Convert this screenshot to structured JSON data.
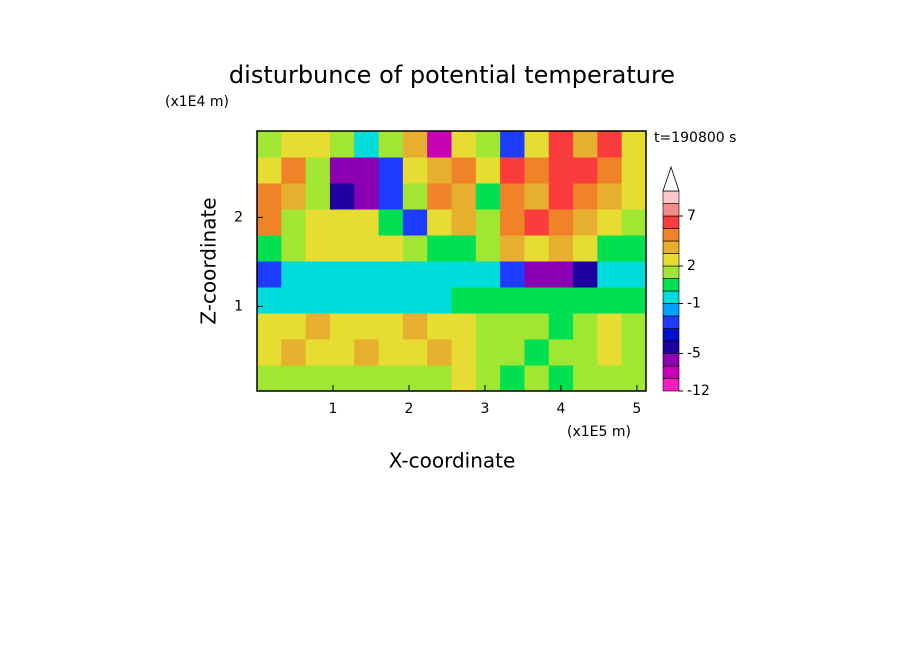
{
  "chart_data": {
    "type": "contour",
    "title": "disturbunce of potential temperature",
    "x_label": "X-coordinate",
    "y_label": "Z-coordinate",
    "x_unit": "(x1E5 m)",
    "y_unit": "(x1E4 m)",
    "annotation": "t=190800 s",
    "xlim": [
      0,
      5.12
    ],
    "ylim": [
      0.05,
      2.97
    ],
    "xticks": [
      1,
      2,
      3,
      4,
      5
    ],
    "yticks": [
      1,
      2
    ],
    "z": [
      [
        1,
        1,
        1.5,
        1.5,
        1.5,
        1,
        1.5,
        1.5,
        2,
        1,
        0.5,
        1,
        0.5,
        1,
        1.5,
        1
      ],
      [
        2.5,
        3,
        2.5,
        2.5,
        3,
        2.5,
        2.5,
        3,
        2.5,
        1.5,
        1,
        0.5,
        1,
        1.5,
        2,
        1.5
      ],
      [
        2.5,
        2.5,
        3,
        2.5,
        2.5,
        2.5,
        3,
        2.5,
        2,
        1.5,
        1,
        1.5,
        0.5,
        1,
        2,
        1.5
      ],
      [
        -0.5,
        -0.5,
        -0.5,
        -0.5,
        -0.5,
        -0.5,
        -0.5,
        -0.5,
        0,
        0.5,
        0,
        0.5,
        0,
        0.5,
        0,
        0
      ],
      [
        -2.5,
        -0.5,
        -0.5,
        -0.5,
        -0.5,
        -0.5,
        -0.5,
        -0.5,
        -0.5,
        -0.5,
        -2.5,
        -5.5,
        -5.5,
        -4.5,
        -0.5,
        -0.5
      ],
      [
        0.5,
        1.5,
        2.5,
        2.5,
        2.5,
        2.5,
        1.5,
        0.5,
        0.5,
        1.5,
        3.5,
        2.5,
        3.5,
        2.5,
        0.5,
        0.5
      ],
      [
        4.5,
        1.5,
        2.5,
        2.5,
        2.5,
        0.5,
        -2.5,
        2.5,
        3.5,
        1.5,
        4.5,
        5.5,
        4.5,
        3.5,
        2.5,
        1.5
      ],
      [
        4.5,
        3.5,
        1.5,
        -4.5,
        -5.5,
        -2.5,
        1.5,
        4.5,
        3.5,
        0.5,
        4.5,
        3.5,
        5.5,
        4.5,
        3.5,
        2.5
      ],
      [
        2.5,
        4.5,
        1.5,
        -5.5,
        -5.5,
        -2.5,
        2.5,
        3.5,
        4.5,
        2.5,
        5.5,
        4.5,
        5.5,
        5.5,
        4.5,
        2.5
      ],
      [
        1.5,
        2.5,
        2.5,
        1.5,
        -0.5,
        1.5,
        3.5,
        -7.5,
        2.5,
        1.5,
        -2.5,
        2.5,
        5.5,
        3.5,
        5.5,
        2.5
      ]
    ],
    "levels": [
      -12,
      -9,
      -7,
      -5,
      -4,
      -3,
      -2,
      -1,
      0,
      1,
      2,
      3,
      4,
      5,
      7,
      9,
      11
    ],
    "colors": [
      "#f01ec0",
      "#c800b4",
      "#8c00b4",
      "#1e00a0",
      "#0010d0",
      "#1e3cff",
      "#00a0ff",
      "#00dcdc",
      "#00e050",
      "#a0e632",
      "#e6dc32",
      "#e6af2d",
      "#f08228",
      "#fa3c3c",
      "#f08c8c",
      "#ffc8c8"
    ],
    "overflow_color": "#ffffff",
    "colorbar_ticks": [
      -12,
      -5,
      -1,
      2,
      7
    ]
  }
}
